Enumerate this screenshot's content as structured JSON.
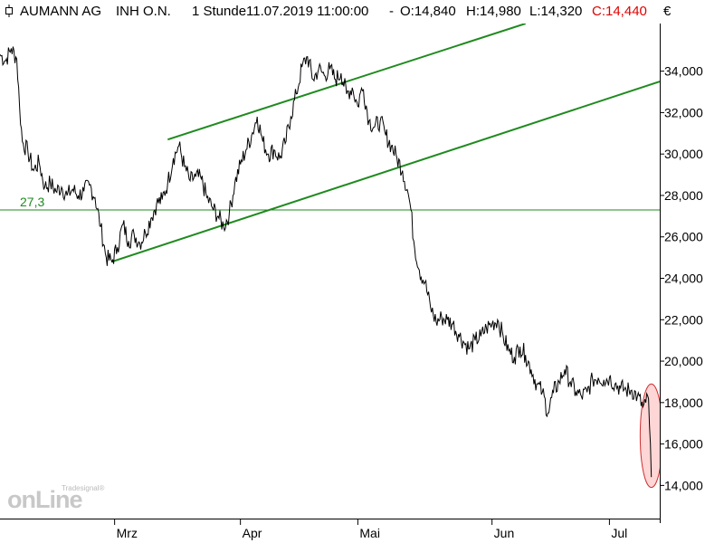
{
  "header": {
    "name": "AUMANN AG",
    "type": "INH O.N.",
    "interval": "1 Stunde",
    "datetime": "11.07.2019 11:00:00",
    "open": "O:14,840",
    "high": "H:14,980",
    "low": "L:14,320",
    "close": "C:14,440",
    "separator": "-"
  },
  "currency": "€",
  "logo": {
    "small": "Tradesignal®",
    "big": "onLine"
  },
  "colors": {
    "trend": "#1f8a1f",
    "price": "#000000",
    "close": "#e00000",
    "highlight_fill": "#ffd6d6",
    "highlight_stroke": "#d03030"
  },
  "chart_data": {
    "type": "line",
    "x_ticks": [
      "Mrz",
      "Apr",
      "Mai",
      "Jun",
      "Jul"
    ],
    "y_ticks": [
      "14,000",
      "16,000",
      "18,000",
      "20,000",
      "22,000",
      "24,000",
      "26,000",
      "28,000",
      "30,000",
      "32,000",
      "34,000"
    ],
    "ylim": [
      12.4,
      36.3
    ],
    "xlim": [
      0,
      118
    ],
    "x_tick_positions": [
      20.5,
      43,
      64,
      88,
      109
    ],
    "series": [
      {
        "values": [
          [
            0,
            34.8
          ],
          [
            1,
            34.5
          ],
          [
            2,
            35.1
          ],
          [
            3,
            34.6
          ],
          [
            3.5,
            32.3
          ],
          [
            4,
            30.6
          ],
          [
            5,
            30.1
          ],
          [
            6,
            29.2
          ],
          [
            7,
            29.6
          ],
          [
            8,
            28.4
          ],
          [
            9,
            28.6
          ],
          [
            10,
            28.2
          ],
          [
            11,
            28.4
          ],
          [
            12,
            28.0
          ],
          [
            13,
            28.3
          ],
          [
            14,
            28.0
          ],
          [
            15,
            28.2
          ],
          [
            16,
            28.5
          ],
          [
            17,
            27.9
          ],
          [
            18,
            26.5
          ],
          [
            19,
            25.0
          ],
          [
            20,
            24.8
          ],
          [
            21,
            25.5
          ],
          [
            22,
            26.6
          ],
          [
            23,
            25.8
          ],
          [
            24,
            26.1
          ],
          [
            25,
            25.7
          ],
          [
            26,
            26.2
          ],
          [
            27,
            26.9
          ],
          [
            28,
            27.6
          ],
          [
            29,
            27.8
          ],
          [
            30,
            28.6
          ],
          [
            31,
            29.8
          ],
          [
            32,
            30.4
          ],
          [
            33,
            29.4
          ],
          [
            34,
            28.7
          ],
          [
            35,
            28.9
          ],
          [
            36,
            28.8
          ],
          [
            37,
            27.9
          ],
          [
            38,
            27.4
          ],
          [
            39,
            27.0
          ],
          [
            40,
            26.5
          ],
          [
            41,
            27.1
          ],
          [
            42,
            28.6
          ],
          [
            43,
            29.5
          ],
          [
            44,
            30.2
          ],
          [
            45,
            30.9
          ],
          [
            46,
            31.8
          ],
          [
            47,
            30.6
          ],
          [
            48,
            30.0
          ],
          [
            49,
            30.2
          ],
          [
            50,
            29.8
          ],
          [
            51,
            30.5
          ],
          [
            52,
            31.8
          ],
          [
            53,
            32.9
          ],
          [
            54,
            34.2
          ],
          [
            55,
            34.7
          ],
          [
            56,
            33.6
          ],
          [
            57,
            34.1
          ],
          [
            58,
            33.8
          ],
          [
            59,
            34.1
          ],
          [
            60,
            33.6
          ],
          [
            61,
            33.9
          ],
          [
            62,
            32.9
          ],
          [
            63,
            33.2
          ],
          [
            64,
            32.3
          ],
          [
            64.5,
            33.0
          ],
          [
            65,
            33.1
          ],
          [
            66,
            31.6
          ],
          [
            67,
            31.3
          ],
          [
            68,
            31.6
          ],
          [
            69,
            30.9
          ],
          [
            70,
            30.4
          ],
          [
            71,
            29.8
          ],
          [
            72,
            29.2
          ],
          [
            73,
            28.1
          ],
          [
            73.5,
            27.3
          ],
          [
            74,
            25.8
          ],
          [
            75,
            24.4
          ],
          [
            76,
            23.8
          ],
          [
            77,
            22.6
          ],
          [
            78,
            21.9
          ],
          [
            79,
            22.1
          ],
          [
            80,
            22.0
          ],
          [
            81,
            21.8
          ],
          [
            82,
            21.3
          ],
          [
            83,
            20.9
          ],
          [
            84,
            20.6
          ],
          [
            85,
            21.0
          ],
          [
            86,
            21.2
          ],
          [
            87,
            21.6
          ],
          [
            88,
            21.8
          ],
          [
            89,
            22.0
          ],
          [
            90,
            21.2
          ],
          [
            91,
            20.5
          ],
          [
            92,
            20.2
          ],
          [
            93,
            20.7
          ],
          [
            94,
            20.3
          ],
          [
            95,
            19.6
          ],
          [
            96,
            18.9
          ],
          [
            97,
            18.5
          ],
          [
            98,
            17.5
          ],
          [
            99,
            18.5
          ],
          [
            100,
            19.0
          ],
          [
            101,
            19.6
          ],
          [
            102,
            19.0
          ],
          [
            103,
            18.5
          ],
          [
            104,
            18.3
          ],
          [
            105,
            18.5
          ],
          [
            106,
            19.1
          ],
          [
            107,
            19.2
          ],
          [
            108,
            19.1
          ],
          [
            109,
            19.2
          ],
          [
            110,
            18.9
          ],
          [
            111,
            18.7
          ],
          [
            112,
            18.6
          ],
          [
            113,
            18.6
          ],
          [
            114,
            18.3
          ],
          [
            115,
            17.8
          ],
          [
            115.5,
            18.0
          ],
          [
            116,
            18.2
          ],
          [
            116.5,
            14.4
          ]
        ]
      }
    ],
    "horizontal_line": {
      "value": 27.3,
      "label": "27,3"
    },
    "trend_lines": [
      {
        "from": [
          20,
          24.8
        ],
        "to": [
          118,
          33.5
        ]
      },
      {
        "from": [
          30,
          30.7
        ],
        "to": [
          94,
          36.3
        ]
      }
    ],
    "highlight_ellipse": {
      "center": [
        116.5,
        16.4
      ],
      "rx": 2.0,
      "ry": 2.5
    },
    "grid": false
  }
}
